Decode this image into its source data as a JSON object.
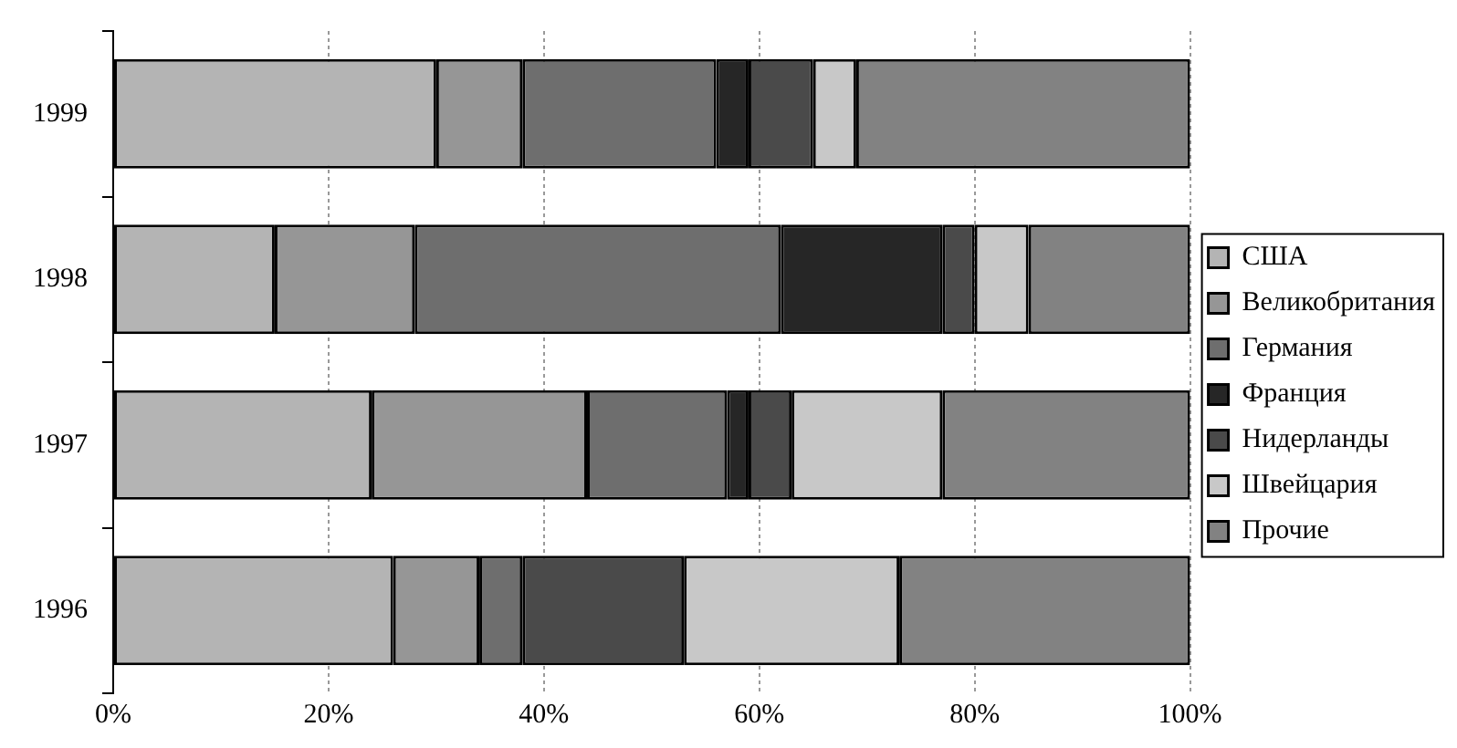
{
  "chart_data": {
    "type": "bar",
    "orientation": "horizontal",
    "stacked": true,
    "categories": [
      "1999",
      "1998",
      "1997",
      "1996"
    ],
    "series": [
      {
        "name": "США",
        "color": "#b4b4b4",
        "values": [
          30,
          15,
          24,
          26
        ]
      },
      {
        "name": "Великобритания",
        "color": "#969696",
        "values": [
          8,
          13,
          20,
          8
        ]
      },
      {
        "name": "Германия",
        "color": "#6e6e6e",
        "values": [
          18,
          34,
          13,
          4
        ]
      },
      {
        "name": "Франция",
        "color": "#262626",
        "values": [
          3,
          15,
          2,
          0
        ]
      },
      {
        "name": "Нидерланды",
        "color": "#4a4a4a",
        "values": [
          6,
          3,
          4,
          15
        ]
      },
      {
        "name": "Швейцария",
        "color": "#c8c8c8",
        "values": [
          4,
          5,
          14,
          20
        ]
      },
      {
        "name": "Прочие",
        "color": "#828282",
        "values": [
          31,
          15,
          23,
          27
        ]
      }
    ],
    "xlim": [
      0,
      100
    ],
    "xticks": [
      {
        "value": 0,
        "label": "0%"
      },
      {
        "value": 20,
        "label": "20%"
      },
      {
        "value": 40,
        "label": "40%"
      },
      {
        "value": 60,
        "label": "60%"
      },
      {
        "value": 80,
        "label": "80%"
      },
      {
        "value": 100,
        "label": "100%"
      }
    ],
    "grid": "x",
    "legend": "right"
  }
}
